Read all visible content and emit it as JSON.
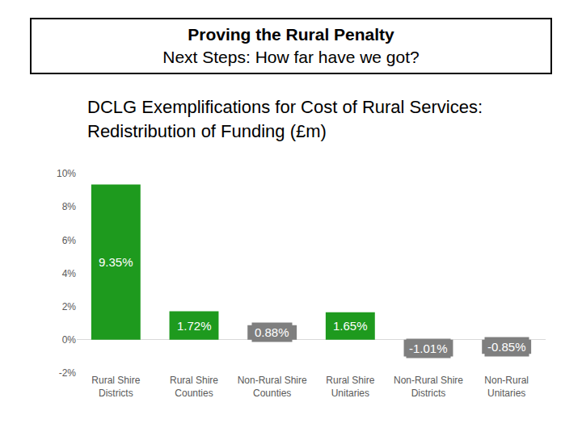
{
  "chart_data": {
    "type": "bar",
    "title": "Proving the Rural Penalty",
    "subtitle": "Next Steps: How far have we got?",
    "annotations": [
      "DCLG Exemplifications for Cost of Rural Services: Redistribution of Funding (£m)"
    ],
    "categories": [
      "Rural Shire Districts",
      "Rural Shire Counties",
      "Non-Rural Shire Counties",
      "Rural Shire Unitaries",
      "Non-Rural Shire Districts",
      "Non-Rural Unitaries"
    ],
    "values": [
      9.35,
      1.72,
      0.88,
      1.65,
      -1.01,
      -0.85
    ],
    "value_labels": [
      "9.35%",
      "1.72%",
      "0.88%",
      "1.65%",
      "-1.01%",
      "-0.85%"
    ],
    "colors": [
      "#1e9a1e",
      "#1e9a1e",
      "#7f7f7f",
      "#1e9a1e",
      "#7f7f7f",
      "#7f7f7f"
    ],
    "data_labels": true,
    "grid": false,
    "ylim": [
      -2,
      10
    ],
    "yticks": [
      {
        "value": -2,
        "label": "-2%"
      },
      {
        "value": 0,
        "label": "0%"
      },
      {
        "value": 2,
        "label": "2%"
      },
      {
        "value": 4,
        "label": "4%"
      },
      {
        "value": 6,
        "label": "6%"
      },
      {
        "value": 8,
        "label": "8%"
      },
      {
        "value": 10,
        "label": "10%"
      }
    ]
  }
}
